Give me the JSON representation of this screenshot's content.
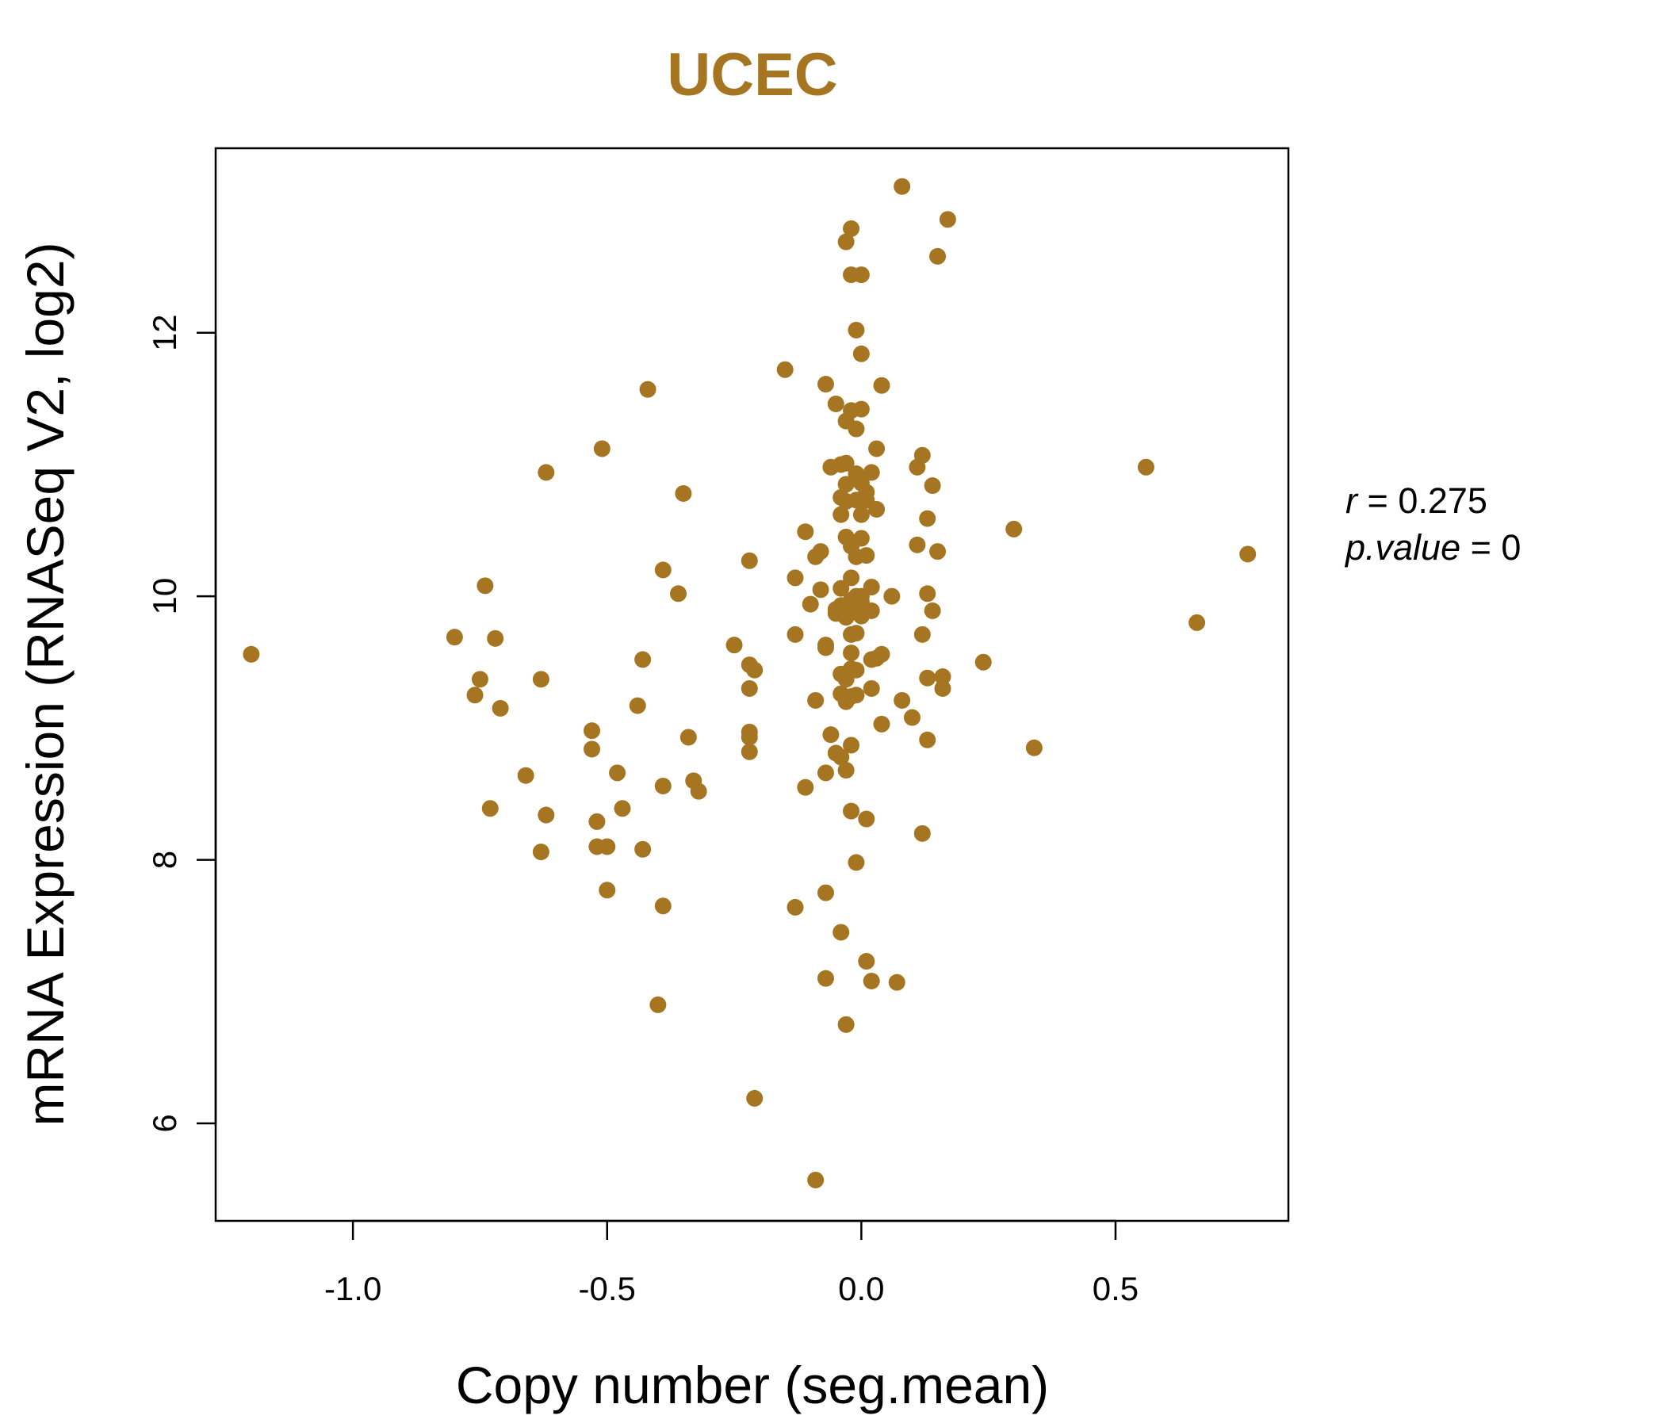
{
  "chart_data": {
    "type": "scatter",
    "title": "UCEC",
    "xlabel": "Copy number (seg.mean)",
    "ylabel": "mRNA Expression (RNASeq V2, log2)",
    "xlim": [
      -1.27,
      0.84
    ],
    "ylim": [
      5.26,
      13.4
    ],
    "xticks": [
      -1.0,
      -0.5,
      0.0,
      0.5
    ],
    "xtick_labels": [
      "-1.0",
      "-0.5",
      "0.0",
      "0.5"
    ],
    "yticks": [
      6,
      8,
      10,
      12
    ],
    "ytick_labels": [
      "6",
      "8",
      "10",
      "12"
    ],
    "grid": false,
    "point_color": "#A67522",
    "stats": {
      "r_label": "r",
      "r_value": "0.275",
      "p_label": "p.value",
      "p_value": "0"
    },
    "points": [
      [
        -1.2,
        9.56
      ],
      [
        -0.8,
        9.69
      ],
      [
        -0.76,
        9.25
      ],
      [
        -0.75,
        9.37
      ],
      [
        -0.74,
        10.08
      ],
      [
        -0.73,
        8.39
      ],
      [
        -0.72,
        9.68
      ],
      [
        -0.71,
        9.15
      ],
      [
        -0.66,
        8.64
      ],
      [
        -0.63,
        8.06
      ],
      [
        -0.63,
        9.37
      ],
      [
        -0.62,
        10.94
      ],
      [
        -0.62,
        8.34
      ],
      [
        -0.53,
        8.98
      ],
      [
        -0.53,
        8.84
      ],
      [
        -0.52,
        8.29
      ],
      [
        -0.52,
        8.1
      ],
      [
        -0.51,
        11.12
      ],
      [
        -0.5,
        7.77
      ],
      [
        -0.5,
        8.1
      ],
      [
        -0.48,
        8.66
      ],
      [
        -0.47,
        8.39
      ],
      [
        -0.44,
        9.17
      ],
      [
        -0.43,
        9.52
      ],
      [
        -0.43,
        8.08
      ],
      [
        -0.42,
        11.57
      ],
      [
        -0.4,
        6.9
      ],
      [
        -0.39,
        10.2
      ],
      [
        -0.39,
        8.56
      ],
      [
        -0.39,
        7.65
      ],
      [
        -0.36,
        10.02
      ],
      [
        -0.35,
        10.78
      ],
      [
        -0.34,
        8.93
      ],
      [
        -0.33,
        8.6
      ],
      [
        -0.32,
        8.52
      ],
      [
        -0.25,
        9.63
      ],
      [
        -0.22,
        10.27
      ],
      [
        -0.22,
        9.3
      ],
      [
        -0.22,
        8.93
      ],
      [
        -0.22,
        8.82
      ],
      [
        -0.22,
        8.97
      ],
      [
        -0.22,
        9.48
      ],
      [
        -0.21,
        9.44
      ],
      [
        -0.21,
        6.19
      ],
      [
        -0.15,
        11.72
      ],
      [
        -0.13,
        7.64
      ],
      [
        -0.13,
        10.14
      ],
      [
        -0.13,
        9.71
      ],
      [
        -0.11,
        10.49
      ],
      [
        -0.11,
        8.55
      ],
      [
        -0.1,
        9.94
      ],
      [
        -0.09,
        9.21
      ],
      [
        -0.09,
        10.3
      ],
      [
        -0.09,
        5.57
      ],
      [
        -0.08,
        10.34
      ],
      [
        -0.08,
        10.05
      ],
      [
        -0.07,
        9.61
      ],
      [
        -0.07,
        11.61
      ],
      [
        -0.07,
        8.66
      ],
      [
        -0.07,
        7.75
      ],
      [
        -0.07,
        7.1
      ],
      [
        -0.07,
        9.63
      ],
      [
        -0.06,
        10.98
      ],
      [
        -0.06,
        8.95
      ],
      [
        -0.05,
        11.46
      ],
      [
        -0.05,
        8.81
      ],
      [
        -0.05,
        9.9
      ],
      [
        -0.05,
        9.87
      ],
      [
        -0.04,
        11.0
      ],
      [
        -0.04,
        10.62
      ],
      [
        -0.04,
        10.75
      ],
      [
        -0.04,
        9.93
      ],
      [
        -0.04,
        9.26
      ],
      [
        -0.04,
        7.45
      ],
      [
        -0.04,
        10.06
      ],
      [
        -0.04,
        8.78
      ],
      [
        -0.04,
        9.41
      ],
      [
        -0.03,
        11.33
      ],
      [
        -0.03,
        10.45
      ],
      [
        -0.03,
        10.72
      ],
      [
        -0.03,
        9.9
      ],
      [
        -0.03,
        9.84
      ],
      [
        -0.03,
        9.37
      ],
      [
        -0.03,
        9.2
      ],
      [
        -0.03,
        8.68
      ],
      [
        -0.03,
        6.75
      ],
      [
        -0.03,
        11.01
      ],
      [
        -0.03,
        10.85
      ],
      [
        -0.03,
        12.69
      ],
      [
        -0.02,
        11.41
      ],
      [
        -0.02,
        12.44
      ],
      [
        -0.02,
        12.79
      ],
      [
        -0.02,
        10.38
      ],
      [
        -0.02,
        9.97
      ],
      [
        -0.02,
        9.57
      ],
      [
        -0.02,
        9.24
      ],
      [
        -0.02,
        8.87
      ],
      [
        -0.02,
        8.37
      ],
      [
        -0.02,
        9.45
      ],
      [
        -0.02,
        9.71
      ],
      [
        -0.02,
        10.14
      ],
      [
        -0.01,
        11.27
      ],
      [
        -0.01,
        10.93
      ],
      [
        -0.01,
        10.73
      ],
      [
        -0.01,
        10.3
      ],
      [
        -0.01,
        10.0
      ],
      [
        -0.01,
        9.92
      ],
      [
        -0.01,
        9.72
      ],
      [
        -0.01,
        9.44
      ],
      [
        -0.01,
        9.25
      ],
      [
        -0.01,
        7.98
      ],
      [
        -0.01,
        12.02
      ],
      [
        0.0,
        11.84
      ],
      [
        0.0,
        11.42
      ],
      [
        0.0,
        10.86
      ],
      [
        0.0,
        10.62
      ],
      [
        0.0,
        10.44
      ],
      [
        0.0,
        10.0
      ],
      [
        0.0,
        9.96
      ],
      [
        0.0,
        9.85
      ],
      [
        0.0,
        12.44
      ],
      [
        0.01,
        10.79
      ],
      [
        0.01,
        10.31
      ],
      [
        0.01,
        8.31
      ],
      [
        0.01,
        7.23
      ],
      [
        0.01,
        10.73
      ],
      [
        0.02,
        10.94
      ],
      [
        0.02,
        10.07
      ],
      [
        0.02,
        9.89
      ],
      [
        0.02,
        9.52
      ],
      [
        0.02,
        9.3
      ],
      [
        0.02,
        7.08
      ],
      [
        0.03,
        10.66
      ],
      [
        0.03,
        9.53
      ],
      [
        0.03,
        11.12
      ],
      [
        0.04,
        11.6
      ],
      [
        0.04,
        9.56
      ],
      [
        0.04,
        9.03
      ],
      [
        0.06,
        10.0
      ],
      [
        0.07,
        7.07
      ],
      [
        0.08,
        9.21
      ],
      [
        0.08,
        13.11
      ],
      [
        0.1,
        9.08
      ],
      [
        0.11,
        10.98
      ],
      [
        0.11,
        10.39
      ],
      [
        0.12,
        11.07
      ],
      [
        0.12,
        9.71
      ],
      [
        0.12,
        8.2
      ],
      [
        0.13,
        10.59
      ],
      [
        0.13,
        10.02
      ],
      [
        0.13,
        9.38
      ],
      [
        0.13,
        8.91
      ],
      [
        0.14,
        10.84
      ],
      [
        0.14,
        9.89
      ],
      [
        0.15,
        12.58
      ],
      [
        0.15,
        10.34
      ],
      [
        0.16,
        9.3
      ],
      [
        0.16,
        9.39
      ],
      [
        0.17,
        12.86
      ],
      [
        0.24,
        9.5
      ],
      [
        0.3,
        10.51
      ],
      [
        0.34,
        8.85
      ],
      [
        0.56,
        10.98
      ],
      [
        0.66,
        9.8
      ],
      [
        0.76,
        10.32
      ]
    ]
  }
}
